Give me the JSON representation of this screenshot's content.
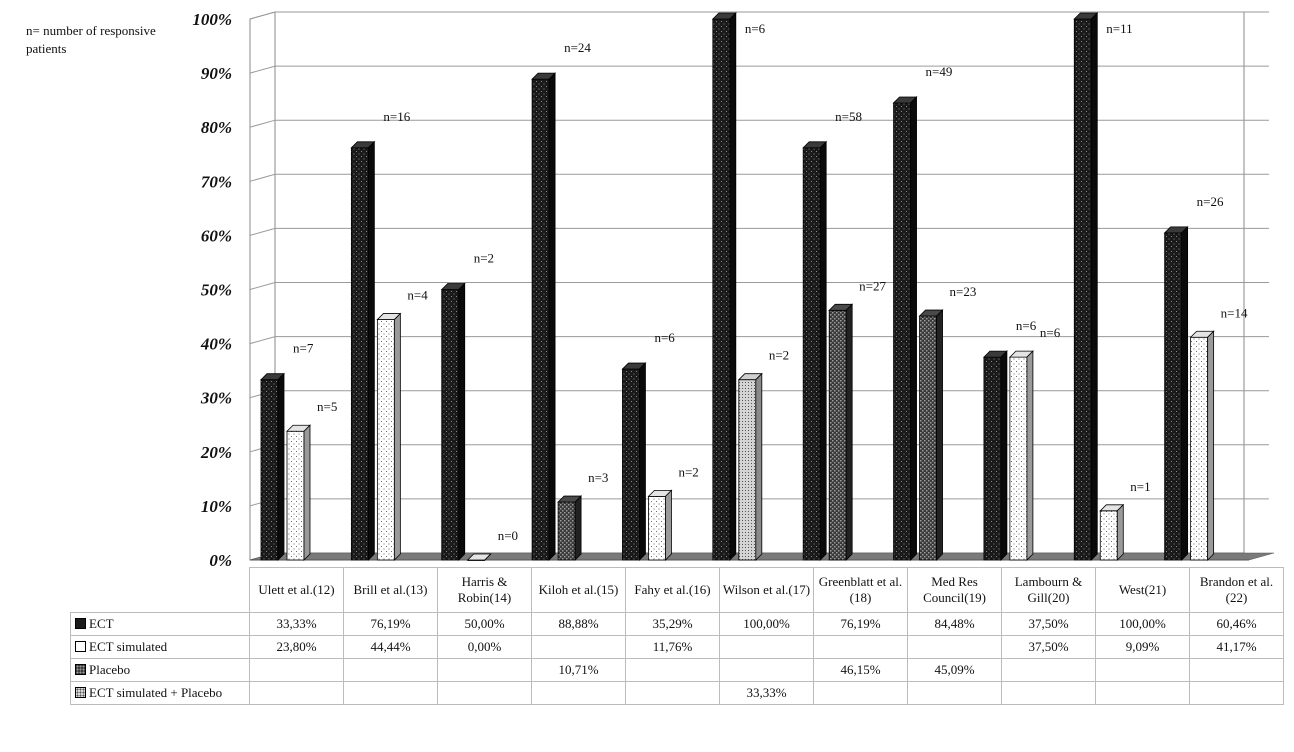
{
  "note": "n= number of responsive patients",
  "colors": {
    "ect": "#1a1a1a",
    "ect_simulated": "#ffffff",
    "placebo": "#3a3a3a",
    "ect_sim_placebo": "#d4d4d4",
    "floor": "#7a7a7a"
  },
  "chart_data": {
    "type": "bar",
    "title": "",
    "ylim": [
      0,
      100
    ],
    "yticks": [
      "0%",
      "10%",
      "20%",
      "30%",
      "40%",
      "50%",
      "60%",
      "70%",
      "80%",
      "90%",
      "100%"
    ],
    "categories": [
      "Ulett et al.(12)",
      "Brill et al.(13)",
      "Harris & Robin(14)",
      "Kiloh et al.(15)",
      "Fahy et al.(16)",
      "Wilson et al.(17)",
      "Greenblatt et al.(18)",
      "Med Res Council(19)",
      "Lambourn & Gill(20)",
      "West(21)",
      "Brandon et al.(22)"
    ],
    "series": [
      {
        "name": "ECT",
        "values": [
          33.33,
          76.19,
          50.0,
          88.88,
          35.29,
          100.0,
          76.19,
          84.48,
          37.5,
          100.0,
          60.46
        ],
        "labels": [
          "33,33%",
          "76,19%",
          "50,00%",
          "88,88%",
          "35,29%",
          "100,00%",
          "76,19%",
          "84,48%",
          "37,50%",
          "100,00%",
          "60,46%"
        ],
        "n": [
          "n=7",
          "n=16",
          "n=2",
          "n=24",
          "n=6",
          "n=6",
          "n=58",
          "n=49",
          "n=6",
          "n=11",
          "n=26"
        ]
      },
      {
        "name": "ECT simulated",
        "values": [
          23.8,
          44.44,
          0.0,
          null,
          11.76,
          null,
          null,
          null,
          37.5,
          9.09,
          41.17
        ],
        "labels": [
          "23,80%",
          "44,44%",
          "0,00%",
          "",
          "11,76%",
          "",
          "",
          "",
          "37,50%",
          "9,09%",
          "41,17%"
        ],
        "n": [
          "n=5",
          "n=4",
          "n=0",
          "",
          "n=2",
          "",
          "",
          "",
          "n=6",
          "n=1",
          "n=14"
        ]
      },
      {
        "name": "Placebo",
        "values": [
          null,
          null,
          null,
          10.71,
          null,
          null,
          46.15,
          45.09,
          null,
          null,
          null
        ],
        "labels": [
          "",
          "",
          "",
          "10,71%",
          "",
          "",
          "46,15%",
          "45,09%",
          "",
          "",
          ""
        ],
        "n": [
          "",
          "",
          "",
          "n=3",
          "",
          "",
          "n=27",
          "n=23",
          "",
          "",
          ""
        ]
      },
      {
        "name": "ECT simulated + Placebo",
        "values": [
          null,
          null,
          null,
          null,
          null,
          33.33,
          null,
          null,
          null,
          null,
          null
        ],
        "labels": [
          "",
          "",
          "",
          "",
          "",
          "33,33%",
          "",
          "",
          "",
          "",
          ""
        ],
        "n": [
          "",
          "",
          "",
          "",
          "",
          "n=2",
          "",
          "",
          "",
          "",
          ""
        ]
      }
    ]
  }
}
